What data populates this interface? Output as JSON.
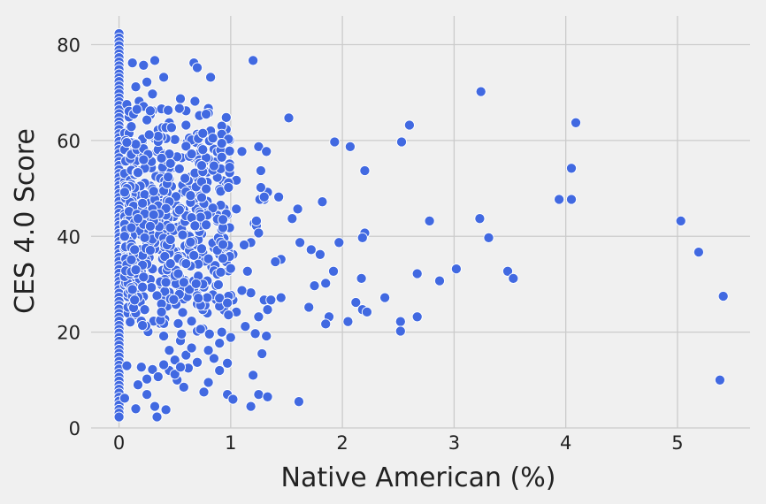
{
  "chart_data": {
    "type": "scatter",
    "title": "",
    "xlabel": "Native American (%)",
    "ylabel": "CES 4.0 Score",
    "xlim": [
      -0.25,
      5.65
    ],
    "ylim": [
      0,
      86
    ],
    "xticks": [
      0,
      1,
      2,
      3,
      4,
      5
    ],
    "yticks": [
      0,
      20,
      40,
      60,
      80
    ],
    "xtick_labels": [
      "0",
      "1",
      "2",
      "3",
      "4",
      "5"
    ],
    "ytick_labels": [
      "0",
      "20",
      "40",
      "60",
      "80"
    ],
    "grid": true,
    "point_color": "#4169e1",
    "edge_color": "#ffffff",
    "background": "#f0f0f0",
    "points": [
      [
        0,
        82.3
      ],
      [
        0,
        81.4
      ],
      [
        0,
        80.6
      ],
      [
        0,
        79.8
      ],
      [
        0,
        78.9
      ],
      [
        0,
        78.1
      ],
      [
        0,
        77.3
      ],
      [
        0,
        76.4
      ],
      [
        0,
        75.6
      ],
      [
        0,
        74.8
      ],
      [
        0,
        73.9
      ],
      [
        0,
        73.1
      ],
      [
        0,
        72.3
      ],
      [
        0,
        71.4
      ],
      [
        0,
        70.6
      ],
      [
        0,
        69.8
      ],
      [
        0,
        68.9
      ],
      [
        0,
        68.1
      ],
      [
        0,
        67.3
      ],
      [
        0,
        66.4
      ],
      [
        0,
        65.6
      ],
      [
        0,
        64.8
      ],
      [
        0,
        63.9
      ],
      [
        0,
        63.1
      ],
      [
        0,
        62.3
      ],
      [
        0,
        61.4
      ],
      [
        0,
        60.6
      ],
      [
        0,
        59.8
      ],
      [
        0,
        58.9
      ],
      [
        0,
        58.1
      ],
      [
        0,
        57.3
      ],
      [
        0,
        56.4
      ],
      [
        0,
        55.6
      ],
      [
        0,
        54.8
      ],
      [
        0,
        53.9
      ],
      [
        0,
        53.1
      ],
      [
        0,
        52.3
      ],
      [
        0,
        51.4
      ],
      [
        0,
        50.6
      ],
      [
        0,
        49.8
      ],
      [
        0,
        48.9
      ],
      [
        0,
        48.1
      ],
      [
        0,
        47.3
      ],
      [
        0,
        46.4
      ],
      [
        0,
        45.6
      ],
      [
        0,
        44.8
      ],
      [
        0,
        43.9
      ],
      [
        0,
        43.1
      ],
      [
        0,
        42.3
      ],
      [
        0,
        41.4
      ],
      [
        0,
        40.6
      ],
      [
        0,
        39.8
      ],
      [
        0,
        38.9
      ],
      [
        0,
        38.1
      ],
      [
        0,
        37.3
      ],
      [
        0,
        36.4
      ],
      [
        0,
        35.6
      ],
      [
        0,
        34.8
      ],
      [
        0,
        33.9
      ],
      [
        0,
        33.1
      ],
      [
        0,
        32.3
      ],
      [
        0,
        31.4
      ],
      [
        0,
        30.6
      ],
      [
        0,
        29.8
      ],
      [
        0,
        28.9
      ],
      [
        0,
        28.1
      ],
      [
        0,
        27.3
      ],
      [
        0,
        26.4
      ],
      [
        0,
        25.6
      ],
      [
        0,
        24.8
      ],
      [
        0,
        23.9
      ],
      [
        0,
        23.1
      ],
      [
        0,
        22.3
      ],
      [
        0,
        21.4
      ],
      [
        0,
        20.6
      ],
      [
        0,
        19.8
      ],
      [
        0,
        18.9
      ],
      [
        0,
        18.1
      ],
      [
        0,
        17.3
      ],
      [
        0,
        16.4
      ],
      [
        0,
        15.6
      ],
      [
        0,
        14.8
      ],
      [
        0,
        13.9
      ],
      [
        0,
        13.1
      ],
      [
        0,
        12.3
      ],
      [
        0,
        11.4
      ],
      [
        0,
        10.6
      ],
      [
        0,
        9.8
      ],
      [
        0,
        8.9
      ],
      [
        0,
        8.1
      ],
      [
        0,
        7.3
      ],
      [
        0,
        6.4
      ],
      [
        0,
        5.6
      ],
      [
        0,
        4.8
      ],
      [
        0,
        3.9
      ],
      [
        0,
        3.1
      ],
      [
        0,
        2.3
      ],
      [
        0.05,
        6.2
      ],
      [
        0.07,
        13
      ],
      [
        0.15,
        4
      ],
      [
        0.17,
        9
      ],
      [
        0.25,
        7
      ],
      [
        0.32,
        4.5
      ],
      [
        0.34,
        2.3
      ],
      [
        0.42,
        3.8
      ],
      [
        0.45,
        12
      ],
      [
        0.52,
        10
      ],
      [
        0.58,
        8.5
      ],
      [
        0.62,
        12.5
      ],
      [
        0.76,
        7.5
      ],
      [
        0.8,
        9.5
      ],
      [
        0.85,
        14.5
      ],
      [
        0.92,
        20
      ],
      [
        0.97,
        7
      ],
      [
        1.02,
        6
      ],
      [
        1.18,
        4.5
      ],
      [
        1.2,
        11
      ],
      [
        1.25,
        7
      ],
      [
        1.33,
        6.5
      ],
      [
        1.28,
        15.5
      ],
      [
        1.61,
        5.5
      ],
      [
        0.97,
        13.5
      ],
      [
        0.9,
        12
      ],
      [
        0.12,
        76.2
      ],
      [
        0.22,
        75.7
      ],
      [
        0.32,
        76.7
      ],
      [
        0.67,
        76.2
      ],
      [
        0.7,
        75.2
      ],
      [
        0.82,
        73.2
      ],
      [
        1.2,
        76.7
      ],
      [
        0.15,
        71.2
      ],
      [
        0.25,
        72.2
      ],
      [
        0.4,
        73.2
      ],
      [
        0.18,
        68.2
      ],
      [
        0.3,
        69.7
      ],
      [
        0.55,
        68.7
      ],
      [
        0.68,
        68.2
      ],
      [
        0.8,
        66.7
      ],
      [
        0.8,
        65.7
      ],
      [
        0.15,
        66.2
      ],
      [
        0.3,
        66.2
      ],
      [
        0.45,
        63.7
      ],
      [
        0.6,
        63.2
      ],
      [
        0.72,
        65.2
      ],
      [
        0.1,
        62.7
      ],
      [
        0.35,
        62.2
      ],
      [
        0.5,
        60.2
      ],
      [
        0.85,
        58.2
      ],
      [
        0.98,
        60.2
      ],
      [
        1.1,
        57.7
      ],
      [
        1.25,
        58.7
      ],
      [
        1.32,
        57.7
      ],
      [
        1.52,
        64.7
      ],
      [
        1.93,
        59.7
      ],
      [
        2.07,
        58.7
      ],
      [
        2.2,
        53.7
      ],
      [
        2.53,
        59.7
      ],
      [
        2.6,
        63.2
      ],
      [
        3.24,
        70.2
      ],
      [
        4.09,
        63.7
      ],
      [
        4.05,
        54.2
      ],
      [
        3.94,
        47.7
      ],
      [
        4.05,
        47.7
      ],
      [
        1.27,
        53.7
      ],
      [
        1.43,
        48.2
      ],
      [
        1.55,
        43.7
      ],
      [
        1.6,
        45.7
      ],
      [
        1.82,
        47.2
      ],
      [
        2.2,
        40.7
      ],
      [
        2.18,
        39.7
      ],
      [
        1.97,
        38.7
      ],
      [
        1.62,
        38.7
      ],
      [
        1.72,
        37.2
      ],
      [
        1.8,
        36.2
      ],
      [
        1.45,
        35.2
      ],
      [
        1.4,
        34.7
      ],
      [
        1.92,
        32.7
      ],
      [
        1.75,
        29.7
      ],
      [
        1.85,
        30.2
      ],
      [
        2.17,
        31.2
      ],
      [
        1.7,
        25.2
      ],
      [
        1.88,
        23.2
      ],
      [
        1.85,
        21.7
      ],
      [
        2.05,
        22.2
      ],
      [
        2.12,
        26.2
      ],
      [
        2.18,
        24.7
      ],
      [
        2.22,
        24.2
      ],
      [
        2.38,
        27.2
      ],
      [
        2.52,
        22.2
      ],
      [
        2.52,
        20.2
      ],
      [
        2.67,
        23.2
      ],
      [
        2.67,
        32.2
      ],
      [
        2.78,
        43.2
      ],
      [
        2.87,
        30.7
      ],
      [
        3.02,
        33.2
      ],
      [
        3.23,
        43.7
      ],
      [
        3.31,
        39.7
      ],
      [
        3.48,
        32.7
      ],
      [
        3.53,
        31.2
      ],
      [
        5.03,
        43.2
      ],
      [
        5.19,
        36.7
      ],
      [
        5.41,
        27.5
      ],
      [
        5.38,
        10
      ],
      [
        1.33,
        49.2
      ],
      [
        1.3,
        47.7
      ],
      [
        1.21,
        42.7
      ],
      [
        1.23,
        42.2
      ],
      [
        1.18,
        38.7
      ],
      [
        1.12,
        38.2
      ],
      [
        1.15,
        32.7
      ],
      [
        1.18,
        28.2
      ],
      [
        1.3,
        26.7
      ],
      [
        1.33,
        24.7
      ],
      [
        1.25,
        23.2
      ],
      [
        1.13,
        21.2
      ],
      [
        1.22,
        19.7
      ],
      [
        1.32,
        19.2
      ],
      [
        1.36,
        26.7
      ],
      [
        1.45,
        27.2
      ],
      [
        1.02,
        26.7
      ],
      [
        1.0,
        27.7
      ],
      [
        1.05,
        24.2
      ],
      [
        1.1,
        28.7
      ],
      [
        1.27,
        50.2
      ],
      [
        1.26,
        47.7
      ],
      [
        1.05,
        45.7
      ],
      [
        1.05,
        51.7
      ],
      [
        1.02,
        36.2
      ],
      [
        1.23,
        43.2
      ],
      [
        1.25,
        40.7
      ],
      [
        1.3,
        48.2
      ],
      [
        0.4,
        19.2
      ],
      [
        0.55,
        18.2
      ],
      [
        0.7,
        20.2
      ],
      [
        0.75,
        20.7
      ],
      [
        0.9,
        17.7
      ],
      [
        0.8,
        16.2
      ],
      [
        0.6,
        15.2
      ],
      [
        0.5,
        14.2
      ],
      [
        0.7,
        13.7
      ],
      [
        0.4,
        13.2
      ],
      [
        0.3,
        12.2
      ],
      [
        0.2,
        12.7
      ],
      [
        0.35,
        10.7
      ],
      [
        0.25,
        10.2
      ],
      [
        0.5,
        11.2
      ],
      [
        0.55,
        12.7
      ],
      [
        0.65,
        16.7
      ],
      [
        0.45,
        16.2
      ]
    ]
  }
}
